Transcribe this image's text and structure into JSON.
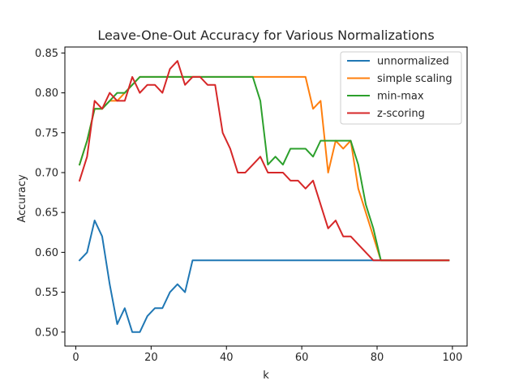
{
  "chart_data": {
    "type": "line",
    "title": "Leave-One-Out Accuracy for Various Normalizations",
    "xlabel": "k",
    "ylabel": "Accuracy",
    "xlim": [
      -2.9,
      103.9
    ],
    "ylim": [
      0.4825,
      0.8575
    ],
    "xticks": [
      0,
      20,
      40,
      60,
      80,
      100
    ],
    "xtick_labels": [
      "0",
      "20",
      "40",
      "60",
      "80",
      "100"
    ],
    "yticks": [
      0.5,
      0.55,
      0.6,
      0.65,
      0.7,
      0.75,
      0.8,
      0.85
    ],
    "ytick_labels": [
      "0.50",
      "0.55",
      "0.60",
      "0.65",
      "0.70",
      "0.75",
      "0.80",
      "0.85"
    ],
    "grid": false,
    "legend_position": "top-right",
    "x": [
      1,
      3,
      5,
      7,
      9,
      11,
      13,
      15,
      17,
      19,
      21,
      23,
      25,
      27,
      29,
      31,
      33,
      35,
      37,
      39,
      41,
      43,
      45,
      47,
      49,
      51,
      53,
      55,
      57,
      59,
      61,
      63,
      65,
      67,
      69,
      71,
      73,
      75,
      77,
      79,
      81,
      83,
      85,
      87,
      89,
      91,
      93,
      95,
      97,
      99
    ],
    "series": [
      {
        "name": "unnormalized",
        "color": "#1f77b4",
        "values": [
          0.59,
          0.6,
          0.64,
          0.62,
          0.56,
          0.51,
          0.53,
          0.5,
          0.5,
          0.52,
          0.53,
          0.53,
          0.55,
          0.56,
          0.55,
          0.59,
          0.59,
          0.59,
          0.59,
          0.59,
          0.59,
          0.59,
          0.59,
          0.59,
          0.59,
          0.59,
          0.59,
          0.59,
          0.59,
          0.59,
          0.59,
          0.59,
          0.59,
          0.59,
          0.59,
          0.59,
          0.59,
          0.59,
          0.59,
          0.59,
          0.59,
          0.59,
          0.59,
          0.59,
          0.59,
          0.59,
          0.59,
          0.59,
          0.59,
          0.59
        ]
      },
      {
        "name": "simple scaling",
        "color": "#ff7f0e",
        "values": [
          0.71,
          0.74,
          0.78,
          0.78,
          0.79,
          0.79,
          0.8,
          0.81,
          0.82,
          0.82,
          0.82,
          0.82,
          0.82,
          0.82,
          0.82,
          0.82,
          0.82,
          0.82,
          0.82,
          0.82,
          0.82,
          0.82,
          0.82,
          0.82,
          0.82,
          0.82,
          0.82,
          0.82,
          0.82,
          0.82,
          0.82,
          0.78,
          0.79,
          0.7,
          0.74,
          0.73,
          0.74,
          0.68,
          0.65,
          0.62,
          0.59,
          0.59,
          0.59,
          0.59,
          0.59,
          0.59,
          0.59,
          0.59,
          0.59,
          0.59
        ]
      },
      {
        "name": "min-max",
        "color": "#2ca02c",
        "values": [
          0.71,
          0.74,
          0.78,
          0.78,
          0.79,
          0.8,
          0.8,
          0.81,
          0.82,
          0.82,
          0.82,
          0.82,
          0.82,
          0.82,
          0.82,
          0.82,
          0.82,
          0.82,
          0.82,
          0.82,
          0.82,
          0.82,
          0.82,
          0.82,
          0.79,
          0.71,
          0.72,
          0.71,
          0.73,
          0.73,
          0.73,
          0.72,
          0.74,
          0.74,
          0.74,
          0.74,
          0.74,
          0.71,
          0.66,
          0.63,
          0.59,
          0.59,
          0.59,
          0.59,
          0.59,
          0.59,
          0.59,
          0.59,
          0.59,
          0.59
        ]
      },
      {
        "name": "z-scoring",
        "color": "#d62728",
        "values": [
          0.69,
          0.72,
          0.79,
          0.78,
          0.8,
          0.79,
          0.79,
          0.82,
          0.8,
          0.81,
          0.81,
          0.8,
          0.83,
          0.84,
          0.81,
          0.82,
          0.82,
          0.81,
          0.81,
          0.75,
          0.73,
          0.7,
          0.7,
          0.71,
          0.72,
          0.7,
          0.7,
          0.7,
          0.69,
          0.69,
          0.68,
          0.69,
          0.66,
          0.63,
          0.64,
          0.62,
          0.62,
          0.61,
          0.6,
          0.59,
          0.59,
          0.59,
          0.59,
          0.59,
          0.59,
          0.59,
          0.59,
          0.59,
          0.59,
          0.59
        ]
      }
    ]
  }
}
